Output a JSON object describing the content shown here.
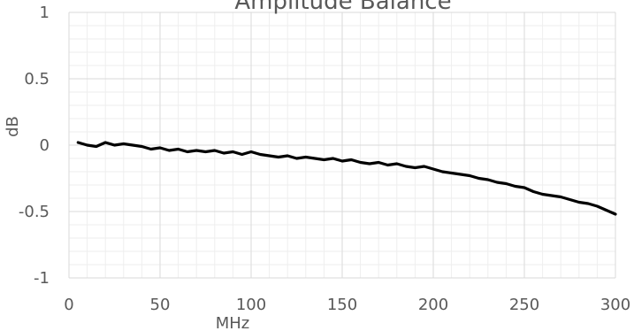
{
  "chart_data": {
    "type": "line",
    "title": "Amplitude Balance",
    "xlabel": "MHz",
    "ylabel": "dB",
    "xlim": [
      0,
      300
    ],
    "ylim": [
      -1,
      1
    ],
    "x_ticks": [
      "0",
      "50",
      "100",
      "150",
      "200",
      "250",
      "300"
    ],
    "y_ticks": [
      "1",
      "0.5",
      "0",
      "-0.5",
      "-1"
    ],
    "grid": {
      "major": true,
      "minor": true
    },
    "colors": {
      "line": "#000000",
      "major_grid": "#d9d9d9",
      "minor_grid": "#eeeeee"
    },
    "series": [
      {
        "x": [
          5,
          10,
          15,
          20,
          25,
          30,
          35,
          40,
          45,
          50,
          55,
          60,
          65,
          70,
          75,
          80,
          85,
          90,
          95,
          100,
          105,
          110,
          115,
          120,
          125,
          130,
          135,
          140,
          145,
          150,
          155,
          160,
          165,
          170,
          175,
          180,
          185,
          190,
          195,
          200,
          205,
          210,
          215,
          220,
          225,
          230,
          235,
          240,
          245,
          250,
          255,
          260,
          265,
          270,
          275,
          280,
          285,
          290,
          295,
          300
        ],
        "y": [
          0.02,
          0.0,
          -0.01,
          0.02,
          0.0,
          0.01,
          0.0,
          -0.01,
          -0.03,
          -0.02,
          -0.04,
          -0.03,
          -0.05,
          -0.04,
          -0.05,
          -0.04,
          -0.06,
          -0.05,
          -0.07,
          -0.05,
          -0.07,
          -0.08,
          -0.09,
          -0.08,
          -0.1,
          -0.09,
          -0.1,
          -0.11,
          -0.1,
          -0.12,
          -0.11,
          -0.13,
          -0.14,
          -0.13,
          -0.15,
          -0.14,
          -0.16,
          -0.17,
          -0.16,
          -0.18,
          -0.2,
          -0.21,
          -0.22,
          -0.23,
          -0.25,
          -0.26,
          -0.28,
          -0.29,
          -0.31,
          -0.32,
          -0.35,
          -0.37,
          -0.38,
          -0.39,
          -0.41,
          -0.43,
          -0.44,
          -0.46,
          -0.49,
          -0.52
        ]
      }
    ]
  }
}
